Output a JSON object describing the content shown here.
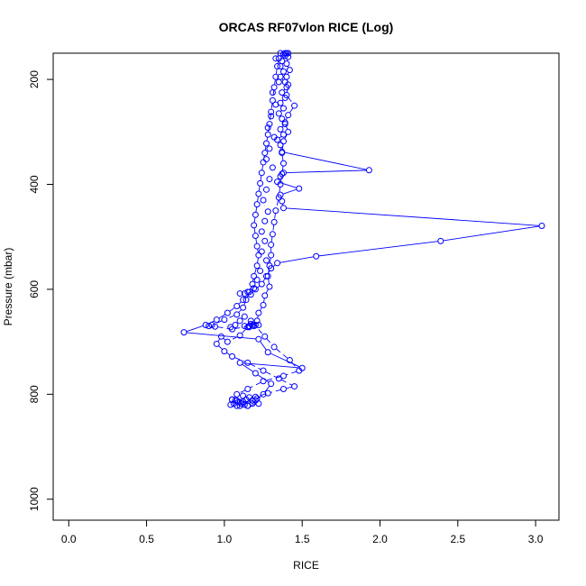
{
  "chart_data": {
    "type": "scatter",
    "title": "ORCAS RF07vlon RICE (Log)",
    "xlabel": "RICE",
    "ylabel": "Pressure (mbar)",
    "xlim": [
      -0.1,
      3.15
    ],
    "ylim": [
      1040,
      150
    ],
    "y_reversed": true,
    "x_ticks": [
      0.0,
      0.5,
      1.0,
      1.5,
      2.0,
      2.5,
      3.0
    ],
    "x_tick_labels": [
      "0.0",
      "0.5",
      "1.0",
      "1.5",
      "2.0",
      "2.5",
      "3.0"
    ],
    "y_ticks": [
      200,
      400,
      600,
      800,
      1000
    ],
    "y_tick_labels": [
      "200",
      "400",
      "600",
      "800",
      "1000"
    ],
    "grid": false,
    "series": [
      {
        "color": "#0000ff",
        "marker": "open-circle",
        "line": "solid",
        "points": [
          [
            1.4,
            150
          ],
          [
            1.38,
            152
          ],
          [
            1.41,
            150
          ],
          [
            1.39,
            155
          ],
          [
            1.37,
            165
          ],
          [
            1.36,
            175
          ],
          [
            1.38,
            185
          ],
          [
            1.36,
            195
          ],
          [
            1.39,
            205
          ],
          [
            1.4,
            215
          ],
          [
            1.37,
            225
          ],
          [
            1.39,
            235
          ],
          [
            1.36,
            245
          ],
          [
            1.38,
            255
          ],
          [
            1.35,
            265
          ],
          [
            1.37,
            275
          ],
          [
            1.39,
            285
          ],
          [
            1.36,
            295
          ],
          [
            1.38,
            305
          ],
          [
            1.34,
            315
          ],
          [
            1.36,
            325
          ],
          [
            1.37,
            338
          ],
          [
            1.93,
            373
          ],
          [
            1.38,
            378
          ],
          [
            1.36,
            385
          ],
          [
            1.34,
            395
          ],
          [
            1.48,
            408
          ],
          [
            1.36,
            420
          ],
          [
            1.37,
            432
          ],
          [
            1.38,
            445
          ],
          [
            3.04,
            479
          ],
          [
            2.39,
            508
          ],
          [
            1.59,
            537
          ],
          [
            1.34,
            550
          ],
          [
            1.3,
            560
          ],
          [
            1.27,
            575
          ],
          [
            1.24,
            590
          ],
          [
            1.2,
            600
          ],
          [
            1.17,
            610
          ],
          [
            1.12,
            620
          ],
          [
            1.08,
            632
          ],
          [
            1.02,
            645
          ],
          [
            0.95,
            658
          ],
          [
            0.88,
            668
          ],
          [
            0.74,
            682
          ],
          [
            1.22,
            695
          ],
          [
            1.28,
            720
          ],
          [
            1.5,
            750
          ],
          [
            1.1,
            740
          ],
          [
            1.2,
            760
          ],
          [
            1.3,
            780
          ],
          [
            1.25,
            800
          ],
          [
            1.2,
            812
          ],
          [
            1.1,
            815
          ]
        ]
      },
      {
        "color": "#0000ff",
        "marker": "open-circle",
        "line": "dashed",
        "points": [
          [
            1.39,
            150
          ],
          [
            1.41,
            157
          ],
          [
            1.4,
            170
          ],
          [
            1.42,
            182
          ],
          [
            1.4,
            195
          ],
          [
            1.41,
            210
          ],
          [
            1.4,
            230
          ],
          [
            1.45,
            250
          ],
          [
            1.41,
            268
          ],
          [
            1.39,
            282
          ],
          [
            1.41,
            300
          ],
          [
            1.38,
            318
          ],
          [
            1.37,
            340
          ],
          [
            1.38,
            360
          ],
          [
            1.37,
            380
          ],
          [
            1.36,
            400
          ],
          [
            1.35,
            425
          ],
          [
            1.33,
            450
          ],
          [
            1.32,
            472
          ],
          [
            1.31,
            495
          ],
          [
            1.3,
            515
          ],
          [
            1.3,
            535
          ],
          [
            1.29,
            555
          ],
          [
            1.28,
            575
          ],
          [
            1.29,
            595
          ],
          [
            1.26,
            612
          ],
          [
            1.25,
            630
          ],
          [
            1.22,
            645
          ],
          [
            1.21,
            660
          ],
          [
            1.18,
            668
          ],
          [
            1.15,
            672
          ],
          [
            1.1,
            688
          ],
          [
            1.02,
            700
          ],
          [
            0.98,
            690
          ],
          [
            0.95,
            704
          ],
          [
            1.0,
            718
          ],
          [
            1.05,
            728
          ],
          [
            1.15,
            740
          ],
          [
            1.25,
            755
          ],
          [
            1.35,
            770
          ],
          [
            1.45,
            785
          ],
          [
            1.38,
            790
          ],
          [
            1.28,
            798
          ],
          [
            1.2,
            805
          ],
          [
            1.18,
            812
          ],
          [
            1.22,
            818
          ],
          [
            1.15,
            822
          ],
          [
            1.1,
            822
          ]
        ]
      },
      {
        "color": "#0000ff",
        "marker": "open-circle",
        "line": "dashed",
        "points": [
          [
            1.36,
            150
          ],
          [
            1.35,
            160
          ],
          [
            1.34,
            175
          ],
          [
            1.33,
            195
          ],
          [
            1.32,
            215
          ],
          [
            1.31,
            240
          ],
          [
            1.3,
            262
          ],
          [
            1.29,
            285
          ],
          [
            1.28,
            305
          ],
          [
            1.27,
            322
          ],
          [
            1.26,
            340
          ],
          [
            1.25,
            358
          ],
          [
            1.24,
            378
          ],
          [
            1.23,
            398
          ],
          [
            1.22,
            418
          ],
          [
            1.21,
            438
          ],
          [
            1.2,
            458
          ],
          [
            1.19,
            478
          ],
          [
            1.2,
            498
          ],
          [
            1.21,
            518
          ],
          [
            1.22,
            535
          ],
          [
            1.21,
            555
          ],
          [
            1.19,
            575
          ],
          [
            1.18,
            590
          ],
          [
            1.16,
            605
          ],
          [
            1.14,
            620
          ],
          [
            1.12,
            635
          ],
          [
            1.08,
            648
          ],
          [
            1.0,
            658
          ],
          [
            0.92,
            668
          ],
          [
            0.9,
            670
          ],
          [
            0.94,
            671
          ],
          [
            1.05,
            676
          ],
          [
            1.16,
            670
          ],
          [
            1.2,
            668
          ],
          [
            1.17,
            660
          ],
          [
            1.26,
            690
          ],
          [
            1.32,
            710
          ],
          [
            1.42,
            735
          ],
          [
            1.48,
            755
          ],
          [
            1.38,
            765
          ],
          [
            1.25,
            775
          ],
          [
            1.15,
            790
          ],
          [
            1.08,
            800
          ],
          [
            1.05,
            810
          ],
          [
            1.08,
            812
          ],
          [
            1.12,
            814
          ],
          [
            1.18,
            818
          ]
        ]
      },
      {
        "color": "#0000ff",
        "marker": "open-circle",
        "line": "none",
        "points": [
          [
            1.33,
            160
          ],
          [
            1.35,
            205
          ],
          [
            1.31,
            225
          ],
          [
            1.33,
            248
          ],
          [
            1.3,
            270
          ],
          [
            1.28,
            292
          ],
          [
            1.32,
            310
          ],
          [
            1.29,
            332
          ],
          [
            1.27,
            352
          ],
          [
            1.31,
            368
          ],
          [
            1.29,
            390
          ],
          [
            1.27,
            410
          ],
          [
            1.25,
            430
          ],
          [
            1.28,
            452
          ],
          [
            1.26,
            470
          ],
          [
            1.24,
            490
          ],
          [
            1.26,
            508
          ],
          [
            1.24,
            528
          ],
          [
            1.27,
            545
          ],
          [
            1.23,
            565
          ],
          [
            1.21,
            582
          ],
          [
            1.19,
            598
          ],
          [
            1.13,
            608
          ],
          [
            1.1,
            608
          ],
          [
            1.15,
            605
          ],
          [
            1.17,
            666
          ],
          [
            1.19,
            670
          ],
          [
            1.22,
            668
          ],
          [
            1.16,
            672
          ],
          [
            1.13,
            670
          ],
          [
            1.07,
            668
          ],
          [
            1.04,
            672
          ],
          [
            1.1,
            660
          ],
          [
            1.13,
            652
          ],
          [
            1.05,
            810
          ],
          [
            1.07,
            812
          ],
          [
            1.09,
            815
          ],
          [
            1.11,
            818
          ],
          [
            1.13,
            820
          ],
          [
            1.15,
            822
          ],
          [
            1.08,
            822
          ],
          [
            1.04,
            820
          ],
          [
            1.06,
            818
          ],
          [
            1.14,
            810
          ],
          [
            1.16,
            806
          ],
          [
            1.12,
            803
          ],
          [
            1.18,
            812
          ],
          [
            1.21,
            808
          ]
        ]
      }
    ]
  }
}
